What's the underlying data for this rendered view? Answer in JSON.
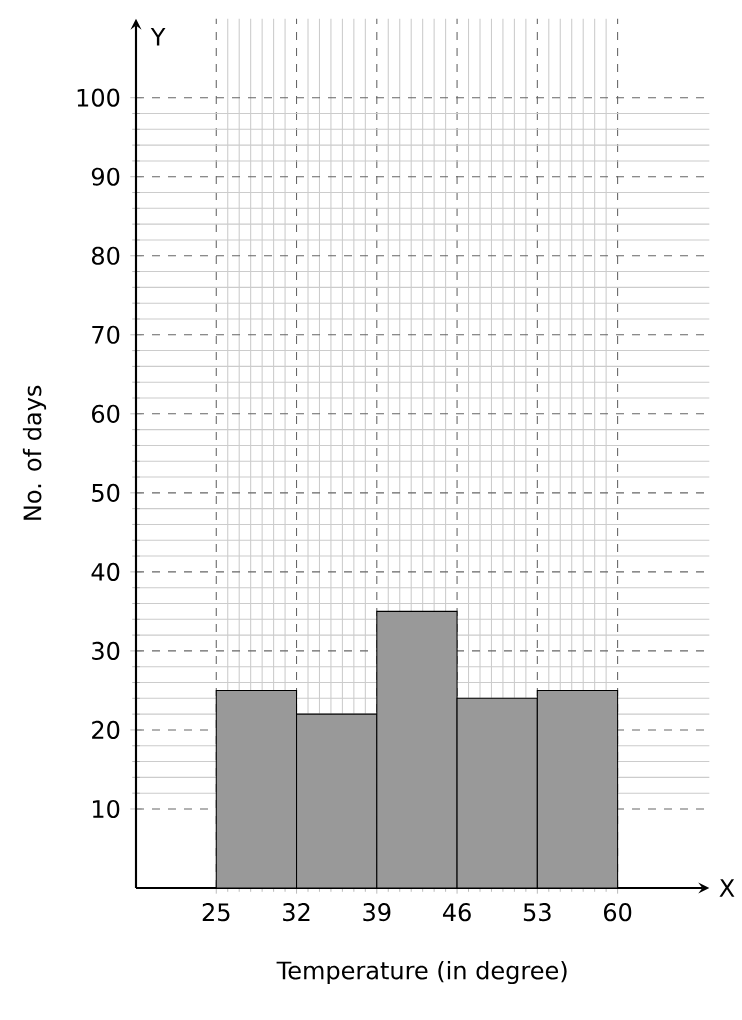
{
  "chart_data": {
    "type": "histogram",
    "xlabel": "Temperature (in degree)",
    "ylabel": "No. of days",
    "bins": [
      25,
      32,
      39,
      46,
      53,
      60
    ],
    "values": [
      25,
      22,
      35,
      24,
      25
    ],
    "color": "#999999",
    "xlim": [
      18,
      68
    ],
    "ylim": [
      0,
      110
    ],
    "xticks": [
      25,
      32,
      39,
      46,
      53,
      60
    ],
    "yticks": [
      10,
      20,
      30,
      40,
      50,
      60,
      70,
      80,
      90,
      100
    ],
    "grid": true,
    "annotations": [
      "X",
      "Y"
    ]
  }
}
